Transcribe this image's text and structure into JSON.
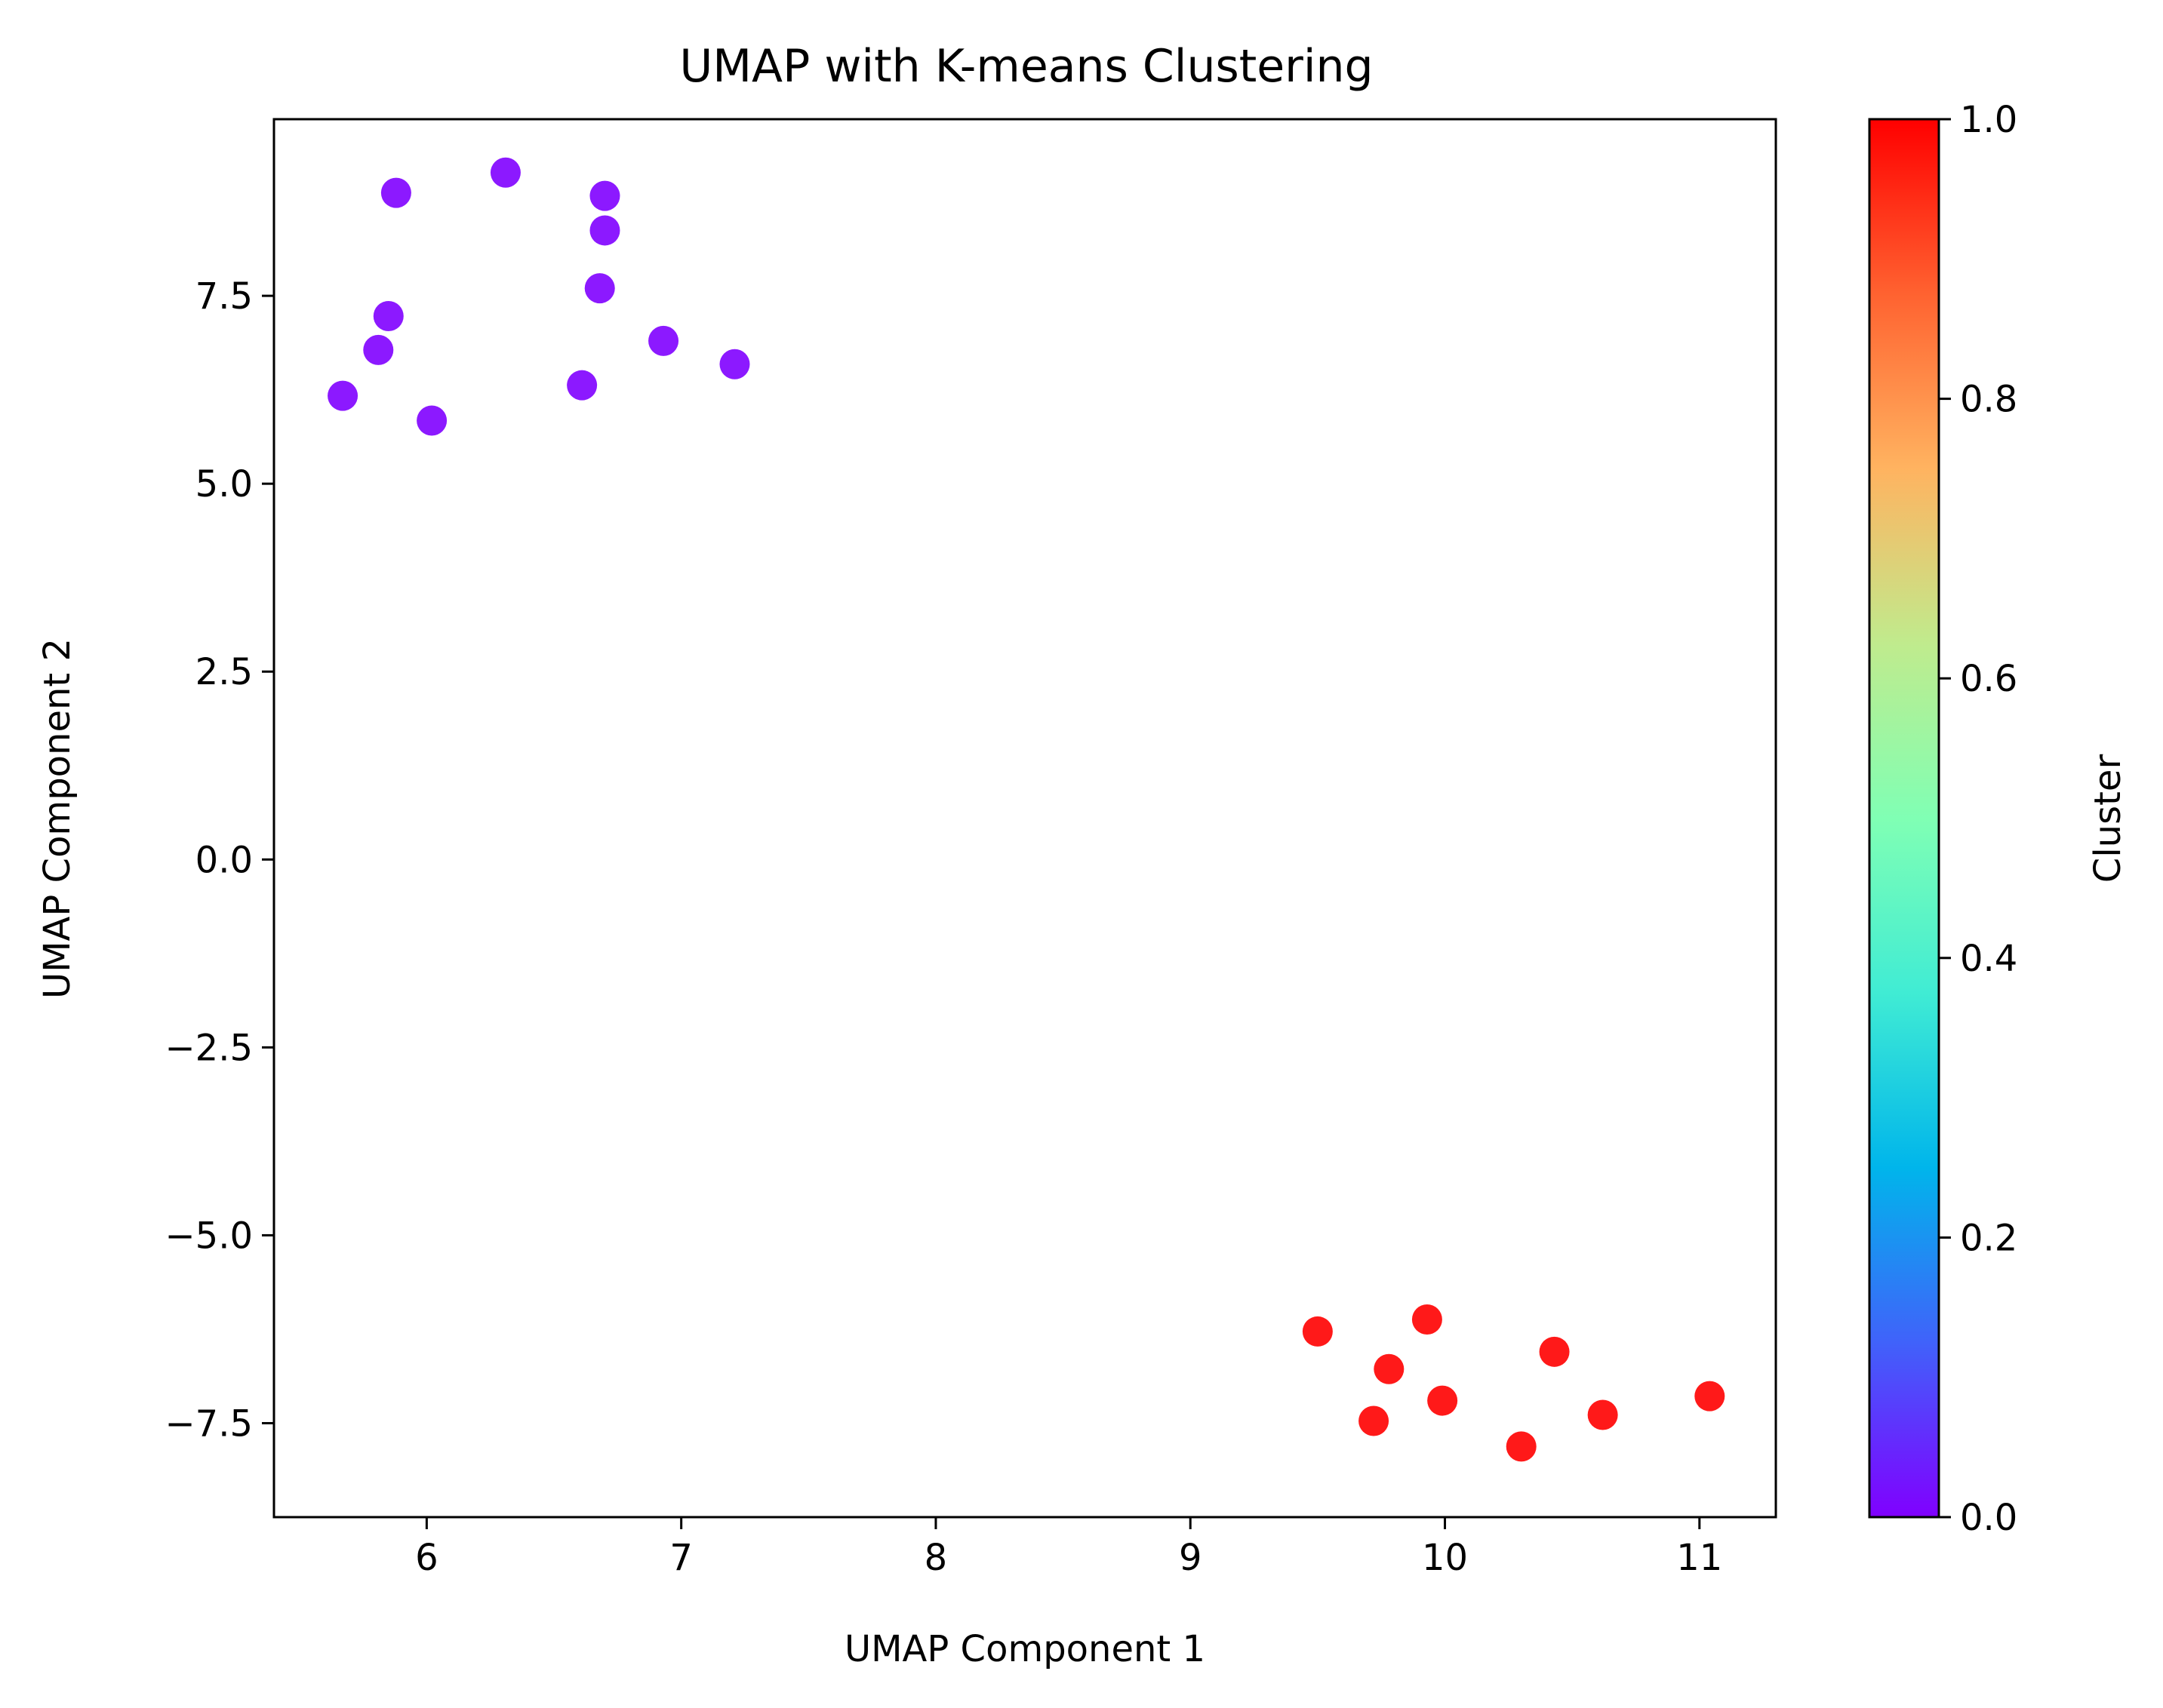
{
  "chart_data": {
    "type": "scatter",
    "title": "UMAP with K-means Clustering",
    "xlabel": "UMAP Component 1",
    "ylabel": "UMAP Component 2",
    "xlim": [
      5.4,
      11.3
    ],
    "ylim": [
      -8.75,
      9.85
    ],
    "xticks": [
      6,
      7,
      8,
      9,
      10,
      11
    ],
    "xtick_labels": [
      "6",
      "7",
      "8",
      "9",
      "10",
      "11"
    ],
    "yticks": [
      -7.5,
      -5.0,
      -2.5,
      0.0,
      2.5,
      5.0,
      7.5
    ],
    "ytick_labels": [
      "−7.5",
      "−5.0",
      "−2.5",
      "0.0",
      "2.5",
      "5.0",
      "7.5"
    ],
    "grid": false,
    "colormap": "rainbow",
    "colorbar": {
      "label": "Cluster",
      "range": [
        0.0,
        1.0
      ],
      "ticks": [
        0.0,
        0.2,
        0.4,
        0.6,
        0.8,
        1.0
      ],
      "tick_labels": [
        "0.0",
        "0.2",
        "0.4",
        "0.6",
        "0.8",
        "1.0"
      ],
      "colors": [
        "#8000ff",
        "#4062fa",
        "#00b5eb",
        "#40ecd4",
        "#80ffb4",
        "#c0eb8d",
        "#ffb360",
        "#ff6230",
        "#ff0000"
      ]
    },
    "series": [
      {
        "cluster": 0,
        "color": "#8000ff",
        "points": [
          {
            "x": 5.67,
            "y": 6.17
          },
          {
            "x": 5.81,
            "y": 6.78
          },
          {
            "x": 5.85,
            "y": 7.23
          },
          {
            "x": 5.88,
            "y": 8.87
          },
          {
            "x": 6.02,
            "y": 5.84
          },
          {
            "x": 6.31,
            "y": 9.14
          },
          {
            "x": 6.61,
            "y": 6.31
          },
          {
            "x": 6.68,
            "y": 7.6
          },
          {
            "x": 6.7,
            "y": 8.83
          },
          {
            "x": 6.7,
            "y": 8.37
          },
          {
            "x": 6.93,
            "y": 6.9
          },
          {
            "x": 7.21,
            "y": 6.59
          }
        ]
      },
      {
        "cluster": 1,
        "color": "#ff0000",
        "points": [
          {
            "x": 9.5,
            "y": -6.28
          },
          {
            "x": 9.72,
            "y": -7.47
          },
          {
            "x": 9.78,
            "y": -6.78
          },
          {
            "x": 9.93,
            "y": -6.12
          },
          {
            "x": 9.99,
            "y": -7.2
          },
          {
            "x": 10.3,
            "y": -7.81
          },
          {
            "x": 10.43,
            "y": -6.55
          },
          {
            "x": 10.62,
            "y": -7.39
          },
          {
            "x": 11.04,
            "y": -7.14
          }
        ]
      }
    ]
  }
}
